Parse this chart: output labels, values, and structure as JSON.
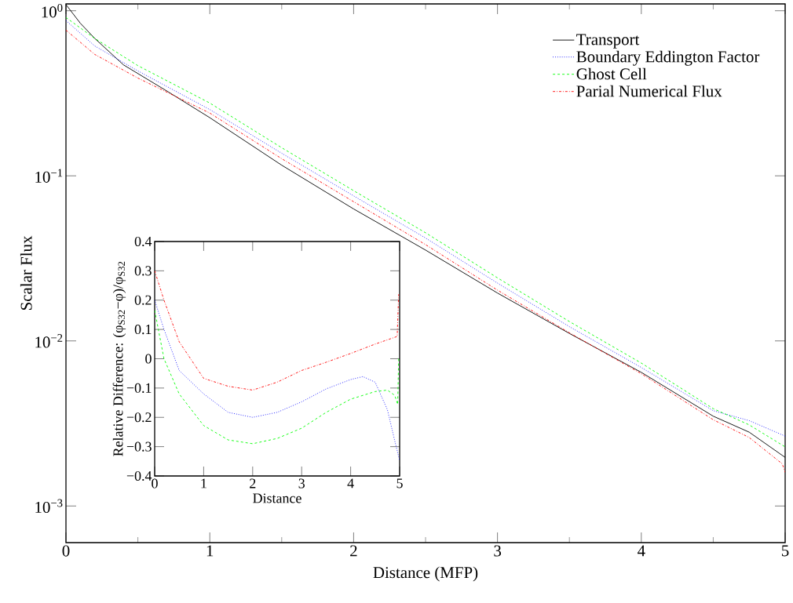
{
  "chart_data": [
    {
      "type": "line",
      "xlabel": "Distance (MFP)",
      "ylabel": "Scalar Flux",
      "log": "y",
      "legend": "top right",
      "xlim": [
        0,
        5
      ],
      "xticks": [
        0,
        1,
        2,
        3,
        4,
        5
      ],
      "ylim": [
        0.0006,
        1.1
      ],
      "yticks": [
        {
          "value": 0.001,
          "label": "10$^{−3}$"
        },
        {
          "value": 0.01,
          "label": "10$^{−2}$"
        },
        {
          "value": 0.1,
          "label": "10$^{−1}$"
        },
        {
          "value": 1,
          "label": "10$^{0}$"
        }
      ],
      "series": [
        {
          "name": "Transport",
          "color": "#000000",
          "line_style": "solid",
          "x": [
            0,
            0.1,
            0.2,
            0.4,
            0.7,
            1,
            1.5,
            2,
            2.5,
            3,
            3.5,
            4,
            4.5,
            4.75,
            5
          ],
          "values": [
            1.09,
            0.84,
            0.68,
            0.47,
            0.327,
            0.225,
            0.116,
            0.063,
            0.0355,
            0.0195,
            0.0111,
            0.00645,
            0.0035,
            0.0028,
            0.00197
          ]
        },
        {
          "name": "Boundary Eddington Factor",
          "color": "#0000ff",
          "line_style": "dotted",
          "x": [
            0,
            0.2,
            0.5,
            1,
            1.5,
            2,
            2.5,
            3,
            3.5,
            4,
            4.5,
            4.75,
            5
          ],
          "values": [
            0.872,
            0.612,
            0.432,
            0.252,
            0.137,
            0.0756,
            0.042,
            0.0224,
            0.0122,
            0.0069,
            0.00378,
            0.00329,
            0.00265
          ]
        },
        {
          "name": "Ghost Cell",
          "color": "#00ff00",
          "line_style": "dashed",
          "x": [
            0,
            0.2,
            0.5,
            1,
            1.5,
            2,
            2.5,
            3,
            3.5,
            4,
            4.5,
            4.75,
            5
          ],
          "values": [
            0.91,
            0.68,
            0.465,
            0.276,
            0.148,
            0.0813,
            0.0452,
            0.0241,
            0.0131,
            0.00734,
            0.00389,
            0.0031,
            0.00228
          ]
        },
        {
          "name": "Parial Numerical Flux",
          "color": "#ff0000",
          "line_style": "dashdot",
          "x": [
            0,
            0.2,
            0.5,
            1,
            1.5,
            2,
            2.5,
            3,
            3.5,
            4,
            4.5,
            4.75,
            4.98,
            5
          ],
          "values": [
            0.763,
            0.544,
            0.391,
            0.24,
            0.127,
            0.0697,
            0.0383,
            0.0203,
            0.0112,
            0.00633,
            0.00333,
            0.0026,
            0.0018,
            0.0016
          ]
        }
      ]
    },
    {
      "type": "line",
      "xlabel": "Distance",
      "ylabel": "Relative Difference: (φ$_{S32}$−φ)/φ$_{S32}$",
      "xlim": [
        0,
        5
      ],
      "xticks": [
        0,
        1,
        2,
        3,
        4,
        5
      ],
      "ylim": [
        -0.4,
        0.4
      ],
      "yticks": [
        {
          "value": -0.4,
          "label": "−0.4"
        },
        {
          "value": -0.3,
          "label": "−0.3"
        },
        {
          "value": -0.2,
          "label": "−0.2"
        },
        {
          "value": -0.1,
          "label": "−0.1"
        },
        0,
        0.1,
        0.2,
        0.3,
        0.4
      ],
      "series": [
        {
          "color": "#0000ff",
          "line_style": "dotted",
          "x": [
            0,
            0.19,
            0.5,
            1,
            1.5,
            2,
            2.5,
            3,
            3.5,
            4,
            4.25,
            4.5,
            4.75,
            4.9,
            5
          ],
          "values": [
            0.2,
            0.1,
            -0.04,
            -0.12,
            -0.183,
            -0.2,
            -0.183,
            -0.147,
            -0.103,
            -0.071,
            -0.061,
            -0.08,
            -0.174,
            -0.28,
            -0.347
          ]
        },
        {
          "color": "#00ff00",
          "line_style": "dashed",
          "x": [
            0,
            0.19,
            0.5,
            1,
            1.5,
            2,
            2.5,
            3,
            3.5,
            4,
            4.5,
            4.75,
            4.9,
            4.96,
            4.98
          ],
          "values": [
            0.165,
            0,
            -0.12,
            -0.228,
            -0.277,
            -0.29,
            -0.272,
            -0.237,
            -0.183,
            -0.138,
            -0.112,
            -0.107,
            -0.125,
            -0.156,
            0.0
          ]
        },
        {
          "color": "#ff0000",
          "line_style": "dashdot",
          "x": [
            0,
            0.19,
            0.5,
            1,
            1.5,
            2,
            2.5,
            3,
            3.5,
            4,
            4.5,
            4.95,
            4.98
          ],
          "values": [
            0.3,
            0.2,
            0.058,
            -0.067,
            -0.094,
            -0.107,
            -0.08,
            -0.04,
            -0.012,
            0.018,
            0.05,
            0.076,
            0.22
          ]
        }
      ]
    }
  ]
}
